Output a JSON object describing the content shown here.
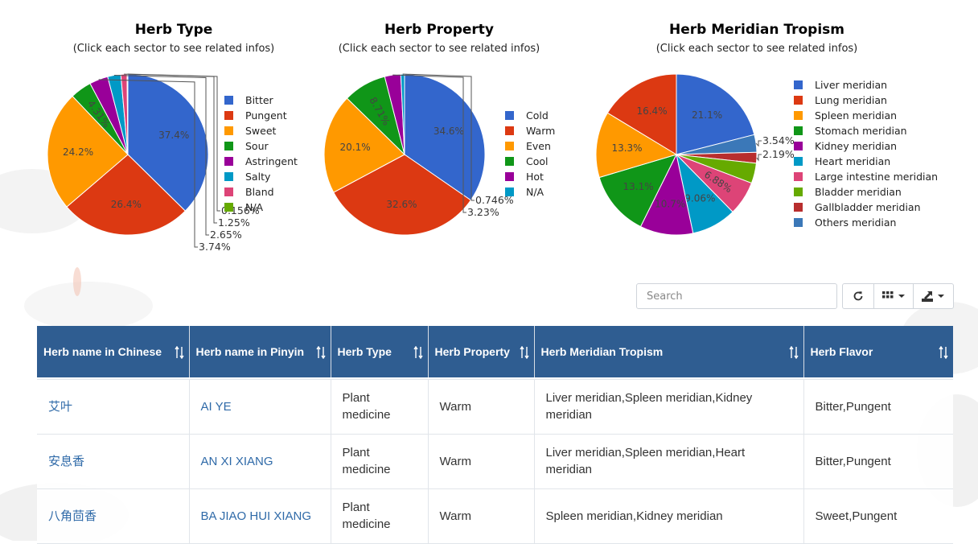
{
  "chart_data": [
    {
      "type": "pie",
      "title": "Herb Type",
      "subtitle": "(Click each sector to see related infos)",
      "legend": "right",
      "slices": [
        {
          "label": "Bitter",
          "value": 37.4,
          "text": "37.4%",
          "color": "#3366cc"
        },
        {
          "label": "Pungent",
          "value": 26.4,
          "text": "26.4%",
          "color": "#dc3912"
        },
        {
          "label": "Sweet",
          "value": 24.2,
          "text": "24.2%",
          "color": "#ff9900"
        },
        {
          "label": "Sour",
          "value": 4.31,
          "text": "4.31%",
          "color": "#109618"
        },
        {
          "label": "Astringent",
          "value": 3.74,
          "text": "3.74%",
          "color": "#990099"
        },
        {
          "label": "Salty",
          "value": 2.65,
          "text": "2.65%",
          "color": "#0099c6"
        },
        {
          "label": "Bland",
          "value": 1.25,
          "text": "1.25%",
          "color": "#dd4477"
        },
        {
          "label": "N/A",
          "value": 0.156,
          "text": "0.156%",
          "color": "#66aa00"
        }
      ]
    },
    {
      "type": "pie",
      "title": "Herb Property",
      "subtitle": "(Click each sector to see related infos)",
      "legend": "right",
      "slices": [
        {
          "label": "Cold",
          "value": 34.6,
          "text": "34.6%",
          "color": "#3366cc"
        },
        {
          "label": "Warm",
          "value": 32.6,
          "text": "32.6%",
          "color": "#dc3912"
        },
        {
          "label": "Even",
          "value": 20.1,
          "text": "20.1%",
          "color": "#ff9900"
        },
        {
          "label": "Cool",
          "value": 8.71,
          "text": "8.71%",
          "color": "#109618"
        },
        {
          "label": "Hot",
          "value": 3.23,
          "text": "3.23%",
          "color": "#990099"
        },
        {
          "label": "N/A",
          "value": 0.746,
          "text": "0.746%",
          "color": "#0099c6"
        }
      ]
    },
    {
      "type": "pie",
      "title": "Herb Meridian Tropism",
      "subtitle": "(Click each sector to see related infos)",
      "legend": "right",
      "slices": [
        {
          "label": "Liver meridian",
          "value": 21.1,
          "text": "21.1%",
          "color": "#3366cc"
        },
        {
          "label": "Others meridian",
          "value": 3.54,
          "text": "3.54%",
          "color": "#3b78b8"
        },
        {
          "label": "Gallbladder meridian",
          "value": 2.19,
          "text": "2.19%",
          "color": "#b82e2e"
        },
        {
          "label": "Bladder meridian",
          "value": 4.06,
          "text": "4.06%",
          "color": "#66aa00"
        },
        {
          "label": "Large intestine meridian",
          "value": 6.88,
          "text": "6.88%",
          "color": "#dd4477"
        },
        {
          "label": "Heart meridian",
          "value": 9.06,
          "text": "9.06%",
          "color": "#0099c6"
        },
        {
          "label": "Kidney meridian",
          "value": 10.7,
          "text": "10.7%",
          "color": "#990099"
        },
        {
          "label": "Stomach meridian",
          "value": 13.1,
          "text": "13.1%",
          "color": "#109618"
        },
        {
          "label": "Spleen meridian",
          "value": 13.3,
          "text": "13.3%",
          "color": "#ff9900"
        },
        {
          "label": "Lung meridian",
          "value": 16.4,
          "text": "16.4%",
          "color": "#dc3912"
        }
      ],
      "legend_order": [
        "Liver meridian",
        "Lung meridian",
        "Spleen meridian",
        "Stomach meridian",
        "Kidney meridian",
        "Heart meridian",
        "Large intestine meridian",
        "Bladder meridian",
        "Gallbladder meridian",
        "Others meridian"
      ]
    }
  ],
  "toolbar": {
    "search_placeholder": "Search",
    "refresh_icon": "refresh-icon",
    "columns_icon": "grid-icon",
    "export_icon": "export-icon"
  },
  "table": {
    "headers": [
      "Herb name in Chinese",
      "Herb name in Pinyin",
      "Herb Type",
      "Herb Property",
      "Herb Meridian Tropism",
      "Herb Flavor"
    ],
    "rows": [
      [
        "艾叶",
        "AI YE",
        "Plant medicine",
        "Warm",
        "Liver meridian,Spleen meridian,Kidney meridian",
        "Bitter,Pungent"
      ],
      [
        "安息香",
        "AN XI XIANG",
        "Plant medicine",
        "Warm",
        "Liver meridian,Spleen meridian,Heart meridian",
        "Bitter,Pungent"
      ],
      [
        "八角茴香",
        "BA JIAO HUI XIANG",
        "Plant medicine",
        "Warm",
        "Spleen meridian,Kidney meridian",
        "Sweet,Pungent"
      ]
    ]
  },
  "colors": {
    "header_bg": "#2f5d91",
    "link": "#2f6aa8"
  }
}
